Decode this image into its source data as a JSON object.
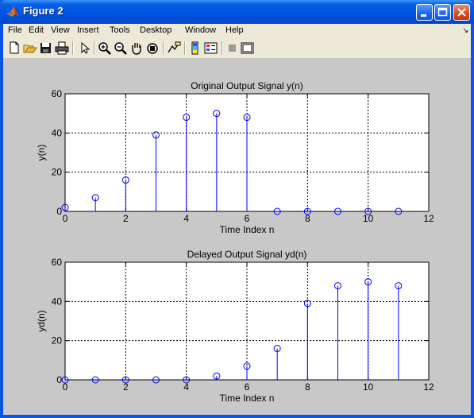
{
  "window": {
    "title": "Figure 2",
    "buttons": [
      "minimize",
      "maximize",
      "close"
    ]
  },
  "menu": [
    "File",
    "Edit",
    "View",
    "Insert",
    "Tools",
    "Desktop",
    "Window",
    "Help"
  ],
  "menu_overflow_icon": "chevron-icon",
  "toolbar": [
    "new-figure-icon",
    "open-file-icon",
    "save-icon",
    "print-icon",
    "edit-plot-arrow-icon",
    "zoom-in-icon",
    "zoom-out-icon",
    "pan-hand-icon",
    "rotate-3d-icon",
    "data-cursor-icon",
    "colorbar-icon",
    "legend-icon",
    "hide-plot-tools-icon",
    "show-plot-tools-icon"
  ],
  "colors": {
    "stem": "#0000ff",
    "figure_bg": "#c8c8c8",
    "axes_bg": "#ffffff"
  },
  "chart_data": [
    {
      "type": "stem",
      "title": "Original Output Signal y(n)",
      "xlabel": "Time Index n",
      "ylabel": "y(n)",
      "x": [
        0,
        1,
        2,
        3,
        4,
        5,
        6,
        7,
        8,
        9,
        10,
        11
      ],
      "values": [
        2,
        7,
        16,
        39,
        48,
        50,
        48,
        0,
        0,
        0,
        0,
        0
      ],
      "xlim": [
        0,
        12
      ],
      "ylim": [
        0,
        60
      ],
      "xticks": [
        0,
        2,
        4,
        6,
        8,
        10,
        12
      ],
      "yticks": [
        0,
        20,
        40,
        60
      ],
      "grid": true
    },
    {
      "type": "stem",
      "title": "Delayed Output Signal yd(n)",
      "xlabel": "Time Index n",
      "ylabel": "yd(n)",
      "x": [
        0,
        1,
        2,
        3,
        4,
        5,
        6,
        7,
        8,
        9,
        10,
        11
      ],
      "values": [
        0,
        0,
        0,
        0,
        0,
        2,
        7,
        16,
        39,
        48,
        50,
        48
      ],
      "xlim": [
        0,
        12
      ],
      "ylim": [
        0,
        60
      ],
      "xticks": [
        0,
        2,
        4,
        6,
        8,
        10,
        12
      ],
      "yticks": [
        0,
        20,
        40,
        60
      ],
      "grid": true
    }
  ]
}
